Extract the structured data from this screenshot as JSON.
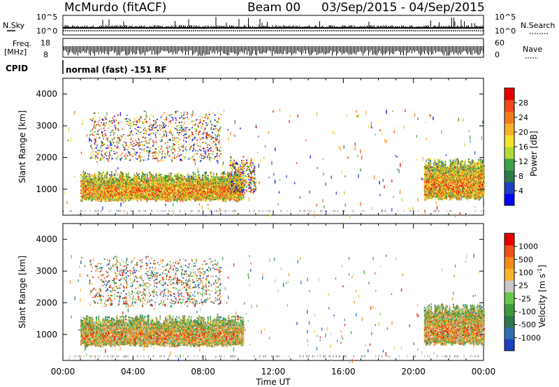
{
  "header": {
    "station": "McMurdo (fitACF)",
    "beam": "Beam 00",
    "date_range": "03/Sep/2015 - 04/Sep/2015"
  },
  "top_panels": {
    "nsky_label": "N.Sky",
    "nsearch_label": "N.Search",
    "log_ticks": [
      "10^5",
      "10^0"
    ],
    "freq_label_1": "Freq.",
    "freq_label_2": "[MHz]",
    "freq_ticks": [
      "18",
      "8"
    ],
    "nave_label": "Nave",
    "nave_ticks": [
      "60",
      "0"
    ],
    "cpid_label": "CPID",
    "cpid_value": "normal (fast) -151 RF"
  },
  "x_axis": {
    "label": "Time UT",
    "ticks": [
      "00:00",
      "04:00",
      "08:00",
      "12:00",
      "16:00",
      "20:00",
      "00:00"
    ],
    "range_hours": [
      0,
      24
    ]
  },
  "chart_data": [
    {
      "type": "heatmap",
      "ylabel": "Slant Range [km]",
      "ylim": [
        180,
        4500
      ],
      "yticks": [
        1000,
        2000,
        3000,
        4000
      ],
      "colorbar": {
        "label": "Power [dB]",
        "ticks": [
          "4",
          "8",
          "12",
          "16",
          "20",
          "24",
          "28"
        ],
        "colors": [
          "#0000ff",
          "#203fc0",
          "#2b7a4a",
          "#3fa04a",
          "#b7d83a",
          "#f2e52a",
          "#f6b02a",
          "#f07a1c",
          "#f04818",
          "#e80000"
        ]
      },
      "scatter_regions": [
        {
          "t_start": 1.0,
          "t_end": 10.3,
          "r_low": 650,
          "r_high": 1400,
          "intensity": "high"
        },
        {
          "t_start": 9.5,
          "t_end": 11.0,
          "r_low": 900,
          "r_high": 1900,
          "intensity": "low"
        },
        {
          "t_start": 20.6,
          "t_end": 24.0,
          "r_low": 700,
          "r_high": 1800,
          "intensity": "high"
        },
        {
          "t_start": 1.5,
          "t_end": 9.0,
          "r_low": 1900,
          "r_high": 3300,
          "intensity": "sparse"
        }
      ]
    },
    {
      "type": "heatmap",
      "ylabel": "Slant Range [km]",
      "ylim": [
        180,
        4500
      ],
      "yticks": [
        1000,
        2000,
        3000,
        4000
      ],
      "colorbar": {
        "label": "Velocity [m s^-1]",
        "ticks": [
          "1000",
          "500",
          "100",
          "25",
          "-25",
          "-100",
          "-500",
          "-1000"
        ],
        "colors": [
          "#1f3fbf",
          "#2f6fae",
          "#2b7a4a",
          "#3c9b3c",
          "#66c84a",
          "#c8c8c8",
          "#f6b42a",
          "#f28a1c",
          "#f05018",
          "#e80000"
        ]
      },
      "scatter_regions": [
        {
          "t_start": 1.0,
          "t_end": 10.3,
          "r_low": 650,
          "r_high": 1450,
          "intensity": "high"
        },
        {
          "t_start": 20.6,
          "t_end": 24.0,
          "r_low": 700,
          "r_high": 1800,
          "intensity": "high"
        },
        {
          "t_start": 1.5,
          "t_end": 9.0,
          "r_low": 1900,
          "r_high": 3300,
          "intensity": "sparse"
        }
      ]
    }
  ]
}
